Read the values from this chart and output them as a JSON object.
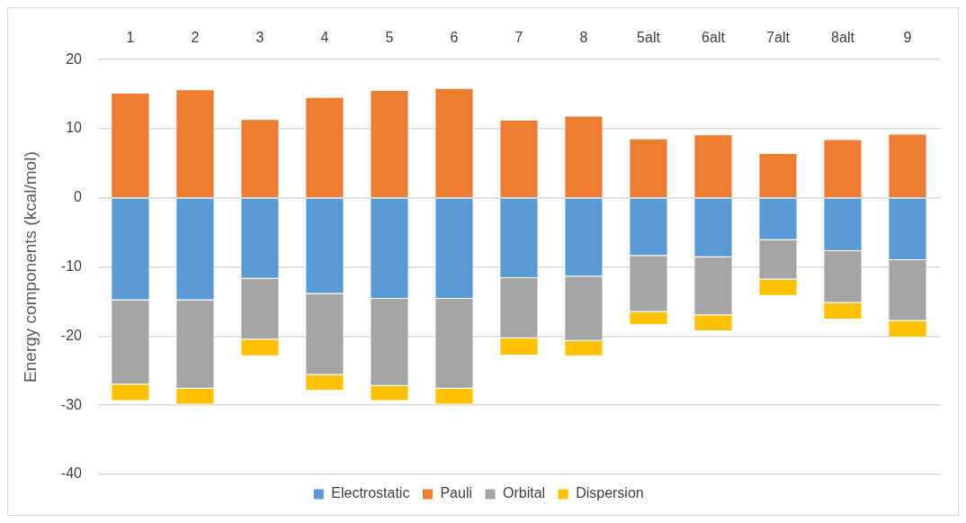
{
  "chart_data": {
    "type": "bar",
    "stacked": true,
    "ylabel": "Energy components (kcal/mol)",
    "categories": [
      "1",
      "2",
      "3",
      "4",
      "5",
      "6",
      "7",
      "8",
      "5alt",
      "6alt",
      "7alt",
      "8alt",
      "9"
    ],
    "ylim": [
      -40,
      20
    ],
    "yticks": [
      -40,
      -30,
      -20,
      -10,
      0,
      10,
      20
    ],
    "grid": "y",
    "legend": "bottom",
    "series": [
      {
        "name": "Electrostatic",
        "color": "#5b9bd5",
        "values": [
          -14.8,
          -14.8,
          -11.7,
          -13.9,
          -14.6,
          -14.6,
          -11.6,
          -11.4,
          -8.4,
          -8.6,
          -6.1,
          -7.7,
          -9.0
        ]
      },
      {
        "name": "Pauli",
        "color": "#ed7d31",
        "values": [
          15.2,
          15.7,
          11.4,
          14.6,
          15.6,
          15.9,
          11.3,
          11.9,
          8.6,
          9.2,
          6.5,
          8.5,
          9.3
        ]
      },
      {
        "name": "Orbital",
        "color": "#a5a5a5",
        "values": [
          -12.2,
          -12.8,
          -8.8,
          -11.7,
          -12.6,
          -13.0,
          -8.7,
          -9.3,
          -8.1,
          -8.4,
          -5.7,
          -7.5,
          -8.8
        ]
      },
      {
        "name": "Dispersion",
        "color": "#ffc000",
        "values": [
          -2.4,
          -2.3,
          -2.4,
          -2.3,
          -2.2,
          -2.3,
          -2.5,
          -2.2,
          -1.9,
          -2.3,
          -2.4,
          -2.4,
          -2.4
        ]
      }
    ]
  }
}
